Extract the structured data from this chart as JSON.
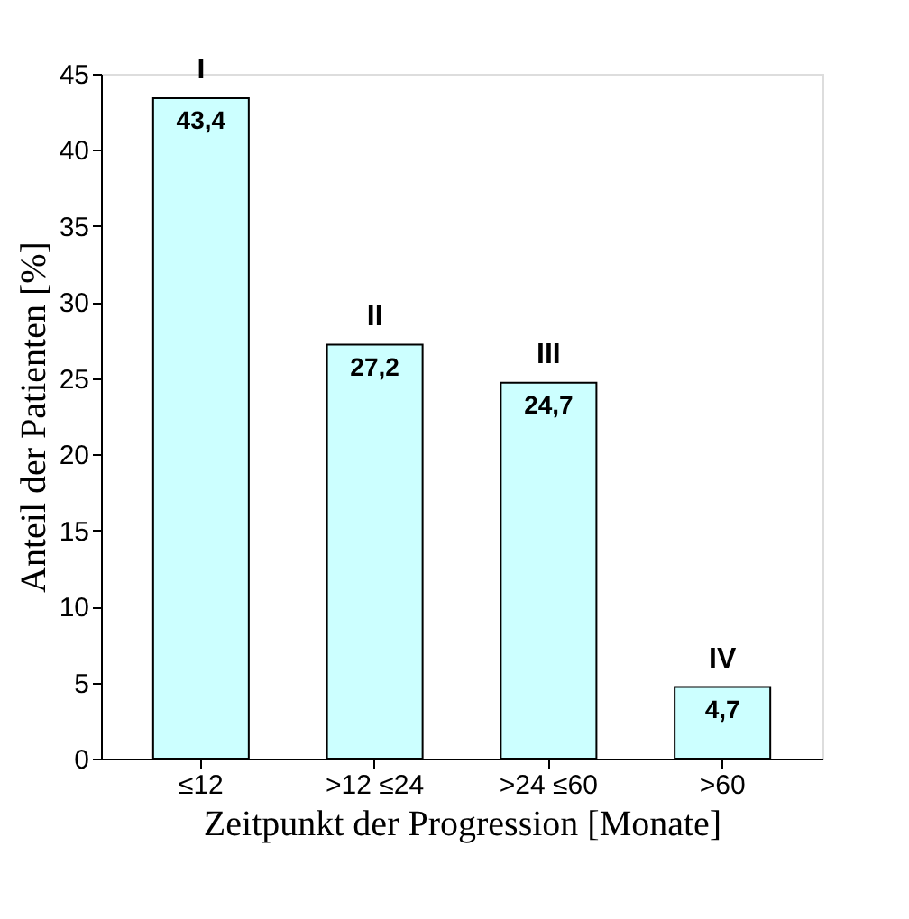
{
  "chart_data": {
    "type": "bar",
    "xlabel": "Zeitpunkt der Progression [Monate]",
    "ylabel": "Anteil der Patienten [%]",
    "categories": [
      "≤12",
      ">12 ≤24",
      ">24 ≤60",
      ">60"
    ],
    "values": [
      43.4,
      27.2,
      24.7,
      4.7
    ],
    "value_labels": [
      "43,4",
      "27,2",
      "24,7",
      "4,7"
    ],
    "color": "#ccffff",
    "ylim": [
      0,
      45
    ],
    "yticks": [
      0,
      5,
      10,
      15,
      20,
      25,
      30,
      35,
      40,
      45
    ],
    "grid": false,
    "annotations": [
      {
        "text": "I",
        "x": "≤12",
        "y": 43.4
      },
      {
        "text": "II",
        "x": ">12 ≤24",
        "y": 27.2
      },
      {
        "text": "III",
        "x": ">24 ≤60",
        "y": 24.7
      },
      {
        "text": "IV",
        "x": ">60",
        "y": 4.7
      }
    ]
  }
}
